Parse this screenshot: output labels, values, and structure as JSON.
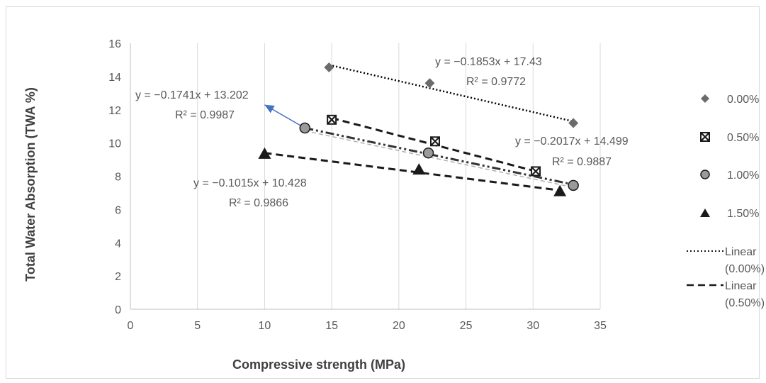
{
  "chart_data": {
    "type": "scatter",
    "title": "",
    "xlabel": "Compressive strength (MPa)",
    "ylabel": "Total Water Absorption (TWA %)",
    "xlim": [
      0,
      35
    ],
    "ylim": [
      0,
      16
    ],
    "xticks": [
      0,
      5,
      10,
      15,
      20,
      25,
      30,
      35
    ],
    "yticks": [
      0,
      2,
      4,
      6,
      8,
      10,
      12,
      14,
      16
    ],
    "grid": "vertical",
    "legend_position": "right",
    "series": [
      {
        "name": "0.00%",
        "marker": "diamond",
        "color": "#6b6b6b",
        "points": [
          [
            14.8,
            14.55
          ],
          [
            22.3,
            13.6
          ],
          [
            33.0,
            11.2
          ]
        ]
      },
      {
        "name": "0.50%",
        "marker": "boxed-x",
        "color": "#1a1a1a",
        "points": [
          [
            15.0,
            11.4
          ],
          [
            22.7,
            10.1
          ],
          [
            30.2,
            8.3
          ]
        ]
      },
      {
        "name": "1.00%",
        "marker": "circle",
        "color": "#9a9a9a",
        "points": [
          [
            13.0,
            10.9
          ],
          [
            22.2,
            9.4
          ],
          [
            33.0,
            7.45
          ]
        ]
      },
      {
        "name": "1.50%",
        "marker": "triangle",
        "color": "#1a1a1a",
        "points": [
          [
            10.0,
            9.35
          ],
          [
            21.5,
            8.4
          ],
          [
            32.0,
            7.1
          ]
        ]
      }
    ],
    "trendlines": [
      {
        "name": "Linear (0.00%)",
        "style": "dotted",
        "from": [
          14.8,
          14.7
        ],
        "to": [
          33.0,
          11.3
        ]
      },
      {
        "name": "Linear (0.50%)",
        "style": "dashed",
        "from": [
          15.0,
          11.5
        ],
        "to": [
          30.2,
          8.3
        ]
      },
      {
        "name": "",
        "style": "dash-dot-dot",
        "from": [
          13.0,
          10.9
        ],
        "to": [
          33.0,
          7.5
        ]
      },
      {
        "name": "",
        "style": "dashed",
        "from": [
          10.0,
          9.4
        ],
        "to": [
          32.0,
          7.15
        ]
      }
    ],
    "arrow": {
      "color": "#4472c4",
      "from": [
        13.0,
        10.9
      ],
      "to": [
        10.0,
        12.3
      ]
    },
    "annotations": [
      {
        "line1": "y = −0.1853x + 17.43",
        "line2": "R² = 0.9772"
      },
      {
        "line1": "y = −0.1741x + 13.202",
        "line2": "R² = 0.9987"
      },
      {
        "line1": "y = −0.2017x + 14.499",
        "line2": "R² = 0.9887"
      },
      {
        "line1": "y = −0.1015x + 10.428",
        "line2": "R² = 0.9866"
      }
    ],
    "legend": [
      {
        "label": "0.00%",
        "marker": "diamond"
      },
      {
        "label": "0.50%",
        "marker": "boxed-x"
      },
      {
        "label": "1.00%",
        "marker": "circle"
      },
      {
        "label": "1.50%",
        "marker": "triangle"
      },
      {
        "label_line1": "Linear",
        "label_line2": "(0.00%)",
        "line": "dotted"
      },
      {
        "label_line1": "Linear",
        "label_line2": "(0.50%)",
        "line": "dashed"
      }
    ]
  }
}
